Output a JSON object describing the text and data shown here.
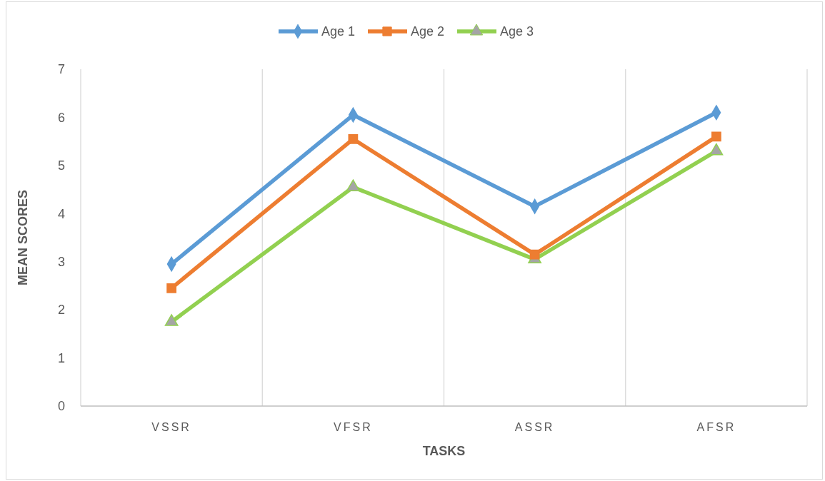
{
  "chart_data": {
    "type": "line",
    "xlabel": "TASKS",
    "ylabel": "MEAN SCORES",
    "categories": [
      "VSSR",
      "VFSR",
      "ASSR",
      "AFSR"
    ],
    "series": [
      {
        "name": "Age 1",
        "color": "#5b9bd5",
        "marker": "diamond",
        "values": [
          2.95,
          6.05,
          4.15,
          6.1
        ]
      },
      {
        "name": "Age 2",
        "color": "#ed7d31",
        "marker": "square",
        "values": [
          2.45,
          5.55,
          3.15,
          5.6
        ]
      },
      {
        "name": "Age 3",
        "color": "#92d050",
        "marker": "triangle",
        "values": [
          1.75,
          4.55,
          3.05,
          5.3
        ]
      }
    ],
    "ylim": [
      0,
      7
    ],
    "yticks": [
      0,
      1,
      2,
      3,
      4,
      5,
      6,
      7
    ],
    "grid": "x",
    "legend": "top",
    "line_style": "solid"
  }
}
